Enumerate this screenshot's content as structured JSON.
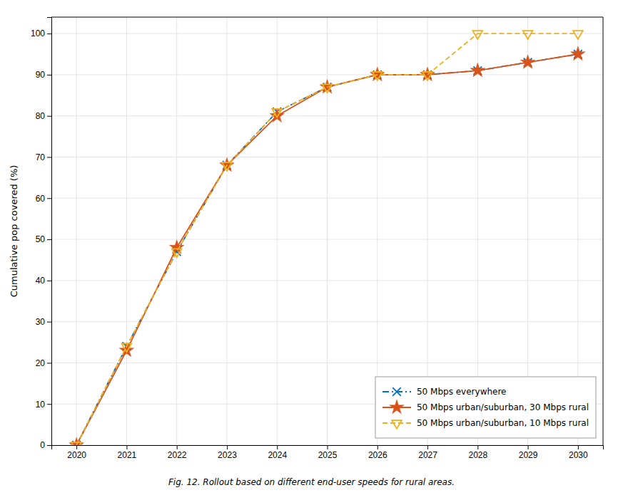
{
  "chart_data": {
    "type": "line",
    "x": [
      2020,
      2021,
      2022,
      2023,
      2024,
      2025,
      2026,
      2027,
      2028,
      2029,
      2030
    ],
    "series": [
      {
        "name": "50 Mbps everywhere",
        "color": "#0072BD",
        "line_style": "dashdot",
        "marker": "x",
        "values": [
          0,
          24,
          47,
          68,
          81,
          87,
          90,
          90,
          91,
          93,
          95
        ]
      },
      {
        "name": "50 Mbps urban/suburban, 30 Mbps rural",
        "color": "#D95319",
        "line_style": "solid",
        "marker": "star",
        "values": [
          0,
          23,
          48,
          68,
          80,
          87,
          90,
          90,
          91,
          93,
          95
        ]
      },
      {
        "name": "50 Mbps urban/suburban, 10 Mbps rural",
        "color": "#EDB120",
        "line_style": "dashed",
        "marker": "triangle_down",
        "values": [
          0,
          24,
          47,
          68,
          81,
          87,
          90,
          90,
          100,
          100,
          100
        ]
      }
    ],
    "ylabel": "Cumulative pop covered (%)",
    "caption": "Fig. 12.  Rollout based on different end-user speeds for rural areas.",
    "xlim": [
      2019.5,
      2030.5
    ],
    "ylim": [
      0,
      104
    ],
    "xticks": [
      2020,
      2021,
      2022,
      2023,
      2024,
      2025,
      2026,
      2027,
      2028,
      2029,
      2030
    ],
    "yticks": [
      0,
      10,
      20,
      30,
      40,
      50,
      60,
      70,
      80,
      90,
      100
    ],
    "grid": true,
    "legend": "lower right"
  }
}
